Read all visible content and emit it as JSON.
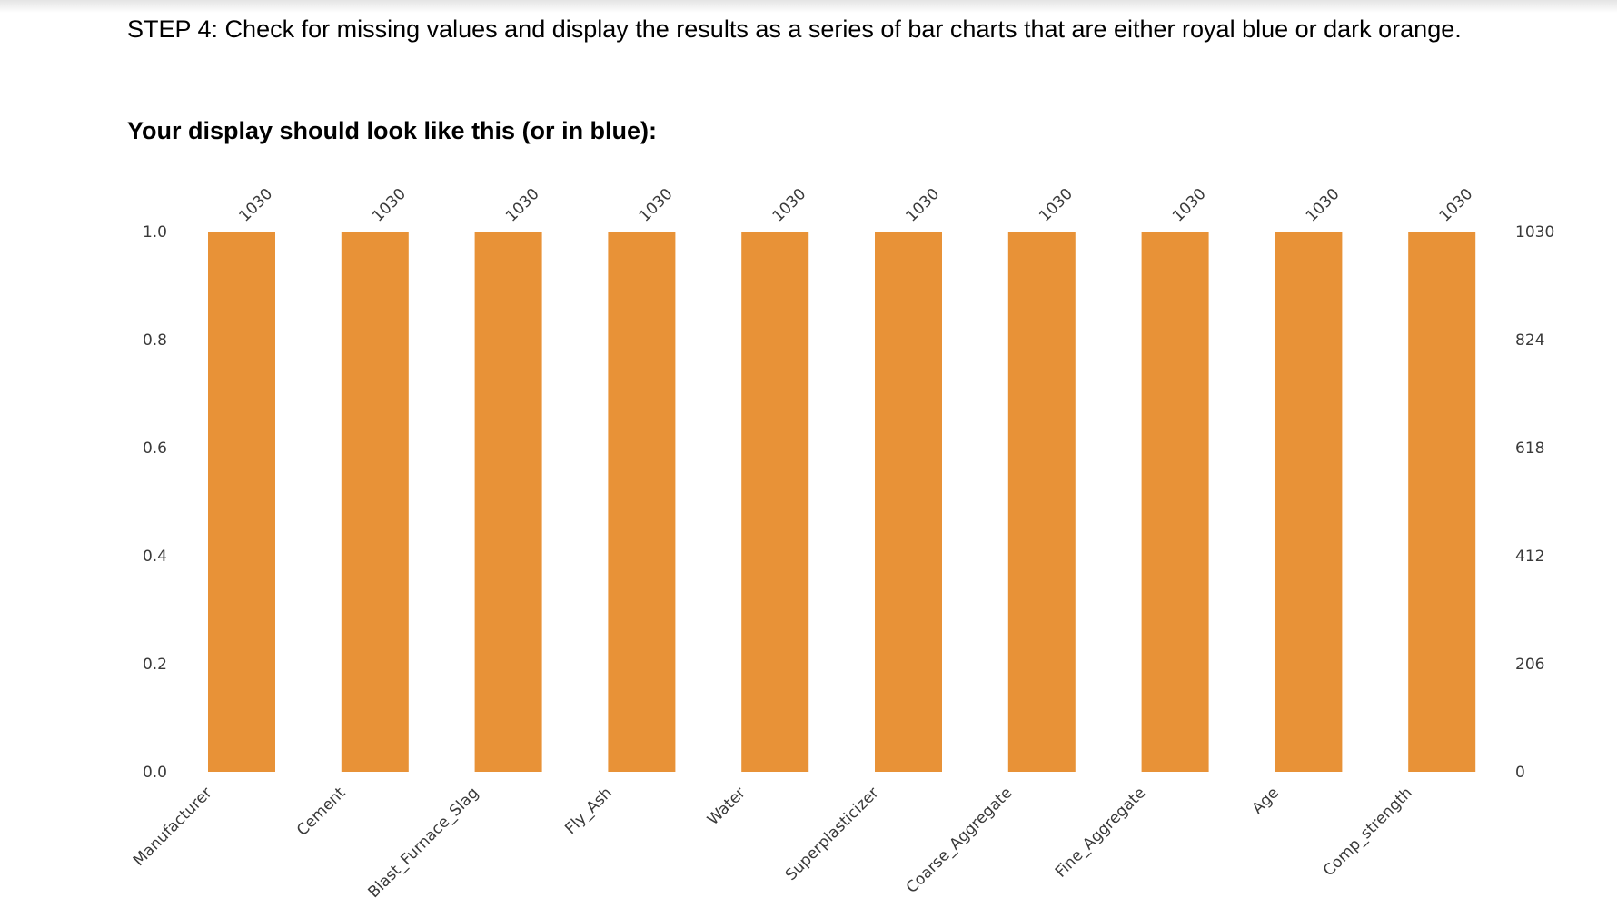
{
  "instructions": {
    "step_text": "STEP 4: Check for missing values and display the results as a series of bar charts that are either royal blue or dark orange.",
    "subheading": "Your display should look like this (or in blue):"
  },
  "chart_data": {
    "type": "bar",
    "categories": [
      "Manufacturer",
      "Cement",
      "Blast_Furnace_Slag",
      "Fly_Ash",
      "Water",
      "Superplasticizer",
      "Coarse_Aggregate",
      "Fine_Aggregate",
      "Age",
      "Comp_strength"
    ],
    "values": [
      1.0,
      1.0,
      1.0,
      1.0,
      1.0,
      1.0,
      1.0,
      1.0,
      1.0,
      1.0
    ],
    "counts": [
      "1030",
      "1030",
      "1030",
      "1030",
      "1030",
      "1030",
      "1030",
      "1030",
      "1030",
      "1030"
    ],
    "ylim": [
      0,
      1.0
    ],
    "y_ticks": [
      "0.0",
      "0.2",
      "0.4",
      "0.6",
      "0.8",
      "1.0"
    ],
    "y_right_ticks": [
      "0",
      "206",
      "412",
      "618",
      "824",
      "1030"
    ],
    "title": "",
    "xlabel": "",
    "ylabel": "",
    "grid": false,
    "bar_color": "#e89237"
  }
}
